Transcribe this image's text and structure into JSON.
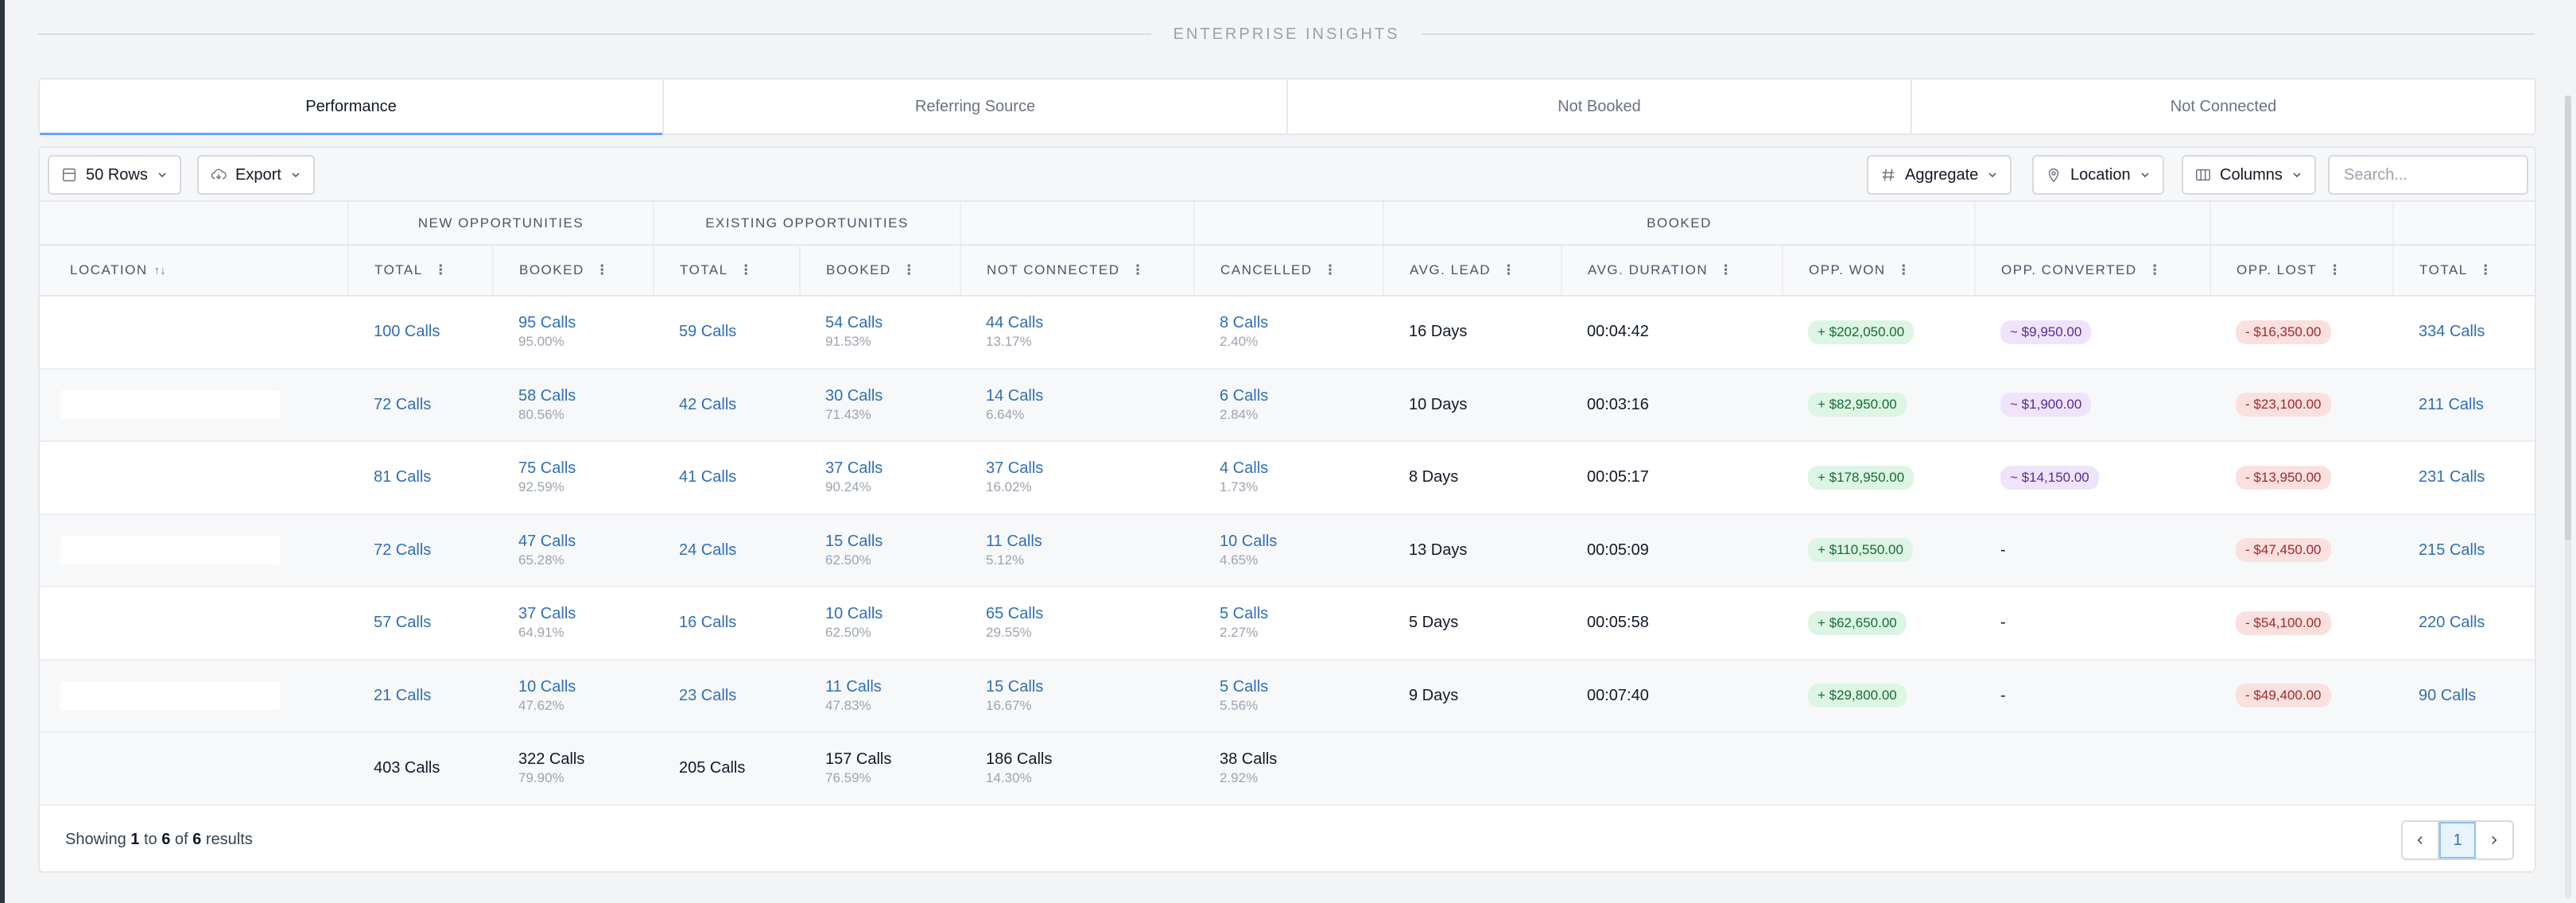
{
  "section_title": "ENTERPRISE INSIGHTS",
  "tabs": [
    "Performance",
    "Referring Source",
    "Not Booked",
    "Not Connected"
  ],
  "toolbar": {
    "rows_label": "50 Rows",
    "export_label": "Export",
    "aggregate_label": "Aggregate",
    "location_label": "Location",
    "columns_label": "Columns",
    "search_placeholder": "Search..."
  },
  "table": {
    "groups": {
      "new_opportunities": "NEW OPPORTUNITIES",
      "existing_opportunities": "EXISTING OPPORTUNITIES",
      "booked": "BOOKED"
    },
    "columns": {
      "location": "LOCATION",
      "total": "TOTAL",
      "booked": "BOOKED",
      "not_connected": "NOT CONNECTED",
      "cancelled": "CANCELLED",
      "avg_lead": "AVG. LEAD",
      "avg_duration": "AVG. DURATION",
      "opp_won": "OPP. WON",
      "opp_converted": "OPP. CONVERTED",
      "opp_lost": "OPP. LOST"
    },
    "rows": [
      {
        "new_total": "100 Calls",
        "new_booked": "95 Calls",
        "new_booked_pct": "95.00%",
        "ex_total": "59 Calls",
        "ex_booked": "54 Calls",
        "ex_booked_pct": "91.53%",
        "not_connected": "44 Calls",
        "not_connected_pct": "13.17%",
        "cancelled": "8 Calls",
        "cancelled_pct": "2.40%",
        "avg_lead": "16 Days",
        "avg_duration": "00:04:42",
        "opp_won": "+ $202,050.00",
        "opp_converted": "~ $9,950.00",
        "opp_lost": "- $16,350.00",
        "total": "334 Calls"
      },
      {
        "new_total": "72 Calls",
        "new_booked": "58 Calls",
        "new_booked_pct": "80.56%",
        "ex_total": "42 Calls",
        "ex_booked": "30 Calls",
        "ex_booked_pct": "71.43%",
        "not_connected": "14 Calls",
        "not_connected_pct": "6.64%",
        "cancelled": "6 Calls",
        "cancelled_pct": "2.84%",
        "avg_lead": "10 Days",
        "avg_duration": "00:03:16",
        "opp_won": "+ $82,950.00",
        "opp_converted": "~ $1,900.00",
        "opp_lost": "- $23,100.00",
        "total": "211 Calls"
      },
      {
        "new_total": "81 Calls",
        "new_booked": "75 Calls",
        "new_booked_pct": "92.59%",
        "ex_total": "41 Calls",
        "ex_booked": "37 Calls",
        "ex_booked_pct": "90.24%",
        "not_connected": "37 Calls",
        "not_connected_pct": "16.02%",
        "cancelled": "4 Calls",
        "cancelled_pct": "1.73%",
        "avg_lead": "8 Days",
        "avg_duration": "00:05:17",
        "opp_won": "+ $178,950.00",
        "opp_converted": "~ $14,150.00",
        "opp_lost": "- $13,950.00",
        "total": "231 Calls"
      },
      {
        "new_total": "72 Calls",
        "new_booked": "47 Calls",
        "new_booked_pct": "65.28%",
        "ex_total": "24 Calls",
        "ex_booked": "15 Calls",
        "ex_booked_pct": "62.50%",
        "not_connected": "11 Calls",
        "not_connected_pct": "5.12%",
        "cancelled": "10 Calls",
        "cancelled_pct": "4.65%",
        "avg_lead": "13 Days",
        "avg_duration": "00:05:09",
        "opp_won": "+ $110,550.00",
        "opp_converted": "-",
        "opp_lost": "- $47,450.00",
        "total": "215 Calls"
      },
      {
        "new_total": "57 Calls",
        "new_booked": "37 Calls",
        "new_booked_pct": "64.91%",
        "ex_total": "16 Calls",
        "ex_booked": "10 Calls",
        "ex_booked_pct": "62.50%",
        "not_connected": "65 Calls",
        "not_connected_pct": "29.55%",
        "cancelled": "5 Calls",
        "cancelled_pct": "2.27%",
        "avg_lead": "5 Days",
        "avg_duration": "00:05:58",
        "opp_won": "+ $62,650.00",
        "opp_converted": "-",
        "opp_lost": "- $54,100.00",
        "total": "220 Calls"
      },
      {
        "new_total": "21 Calls",
        "new_booked": "10 Calls",
        "new_booked_pct": "47.62%",
        "ex_total": "23 Calls",
        "ex_booked": "11 Calls",
        "ex_booked_pct": "47.83%",
        "not_connected": "15 Calls",
        "not_connected_pct": "16.67%",
        "cancelled": "5 Calls",
        "cancelled_pct": "5.56%",
        "avg_lead": "9 Days",
        "avg_duration": "00:07:40",
        "opp_won": "+ $29,800.00",
        "opp_converted": "-",
        "opp_lost": "- $49,400.00",
        "total": "90 Calls"
      }
    ],
    "totals": {
      "new_total": "403 Calls",
      "new_booked": "322 Calls",
      "new_booked_pct": "79.90%",
      "ex_total": "205 Calls",
      "ex_booked": "157 Calls",
      "ex_booked_pct": "76.59%",
      "not_connected": "186 Calls",
      "not_connected_pct": "14.30%",
      "cancelled": "38 Calls",
      "cancelled_pct": "2.92%"
    }
  },
  "footer": {
    "showing": "Showing",
    "from": "1",
    "to_word": "to",
    "to": "6",
    "of_word": "of",
    "count": "6",
    "results": "results"
  },
  "pagination": {
    "current_page": "1"
  }
}
